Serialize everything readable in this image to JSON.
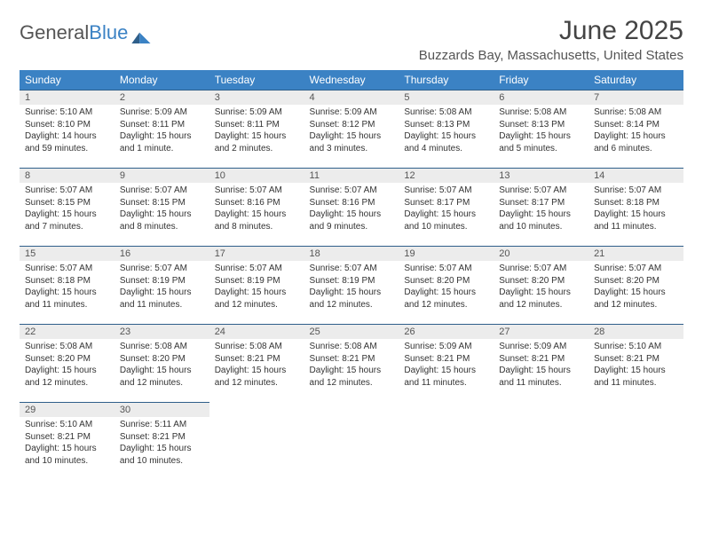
{
  "logo": {
    "text1": "General",
    "text2": "Blue"
  },
  "title": "June 2025",
  "location": "Buzzards Bay, Massachusetts, United States",
  "colors": {
    "header_bg": "#3b82c4",
    "header_text": "#ffffff",
    "daynum_bg": "#ececec",
    "daynum_border": "#2f5f8a",
    "body_bg": "#ffffff",
    "text": "#333333"
  },
  "weekdays": [
    "Sunday",
    "Monday",
    "Tuesday",
    "Wednesday",
    "Thursday",
    "Friday",
    "Saturday"
  ],
  "weeks": [
    [
      {
        "n": "1",
        "sr": "Sunrise: 5:10 AM",
        "ss": "Sunset: 8:10 PM",
        "dl": "Daylight: 14 hours and 59 minutes."
      },
      {
        "n": "2",
        "sr": "Sunrise: 5:09 AM",
        "ss": "Sunset: 8:11 PM",
        "dl": "Daylight: 15 hours and 1 minute."
      },
      {
        "n": "3",
        "sr": "Sunrise: 5:09 AM",
        "ss": "Sunset: 8:11 PM",
        "dl": "Daylight: 15 hours and 2 minutes."
      },
      {
        "n": "4",
        "sr": "Sunrise: 5:09 AM",
        "ss": "Sunset: 8:12 PM",
        "dl": "Daylight: 15 hours and 3 minutes."
      },
      {
        "n": "5",
        "sr": "Sunrise: 5:08 AM",
        "ss": "Sunset: 8:13 PM",
        "dl": "Daylight: 15 hours and 4 minutes."
      },
      {
        "n": "6",
        "sr": "Sunrise: 5:08 AM",
        "ss": "Sunset: 8:13 PM",
        "dl": "Daylight: 15 hours and 5 minutes."
      },
      {
        "n": "7",
        "sr": "Sunrise: 5:08 AM",
        "ss": "Sunset: 8:14 PM",
        "dl": "Daylight: 15 hours and 6 minutes."
      }
    ],
    [
      {
        "n": "8",
        "sr": "Sunrise: 5:07 AM",
        "ss": "Sunset: 8:15 PM",
        "dl": "Daylight: 15 hours and 7 minutes."
      },
      {
        "n": "9",
        "sr": "Sunrise: 5:07 AM",
        "ss": "Sunset: 8:15 PM",
        "dl": "Daylight: 15 hours and 8 minutes."
      },
      {
        "n": "10",
        "sr": "Sunrise: 5:07 AM",
        "ss": "Sunset: 8:16 PM",
        "dl": "Daylight: 15 hours and 8 minutes."
      },
      {
        "n": "11",
        "sr": "Sunrise: 5:07 AM",
        "ss": "Sunset: 8:16 PM",
        "dl": "Daylight: 15 hours and 9 minutes."
      },
      {
        "n": "12",
        "sr": "Sunrise: 5:07 AM",
        "ss": "Sunset: 8:17 PM",
        "dl": "Daylight: 15 hours and 10 minutes."
      },
      {
        "n": "13",
        "sr": "Sunrise: 5:07 AM",
        "ss": "Sunset: 8:17 PM",
        "dl": "Daylight: 15 hours and 10 minutes."
      },
      {
        "n": "14",
        "sr": "Sunrise: 5:07 AM",
        "ss": "Sunset: 8:18 PM",
        "dl": "Daylight: 15 hours and 11 minutes."
      }
    ],
    [
      {
        "n": "15",
        "sr": "Sunrise: 5:07 AM",
        "ss": "Sunset: 8:18 PM",
        "dl": "Daylight: 15 hours and 11 minutes."
      },
      {
        "n": "16",
        "sr": "Sunrise: 5:07 AM",
        "ss": "Sunset: 8:19 PM",
        "dl": "Daylight: 15 hours and 11 minutes."
      },
      {
        "n": "17",
        "sr": "Sunrise: 5:07 AM",
        "ss": "Sunset: 8:19 PM",
        "dl": "Daylight: 15 hours and 12 minutes."
      },
      {
        "n": "18",
        "sr": "Sunrise: 5:07 AM",
        "ss": "Sunset: 8:19 PM",
        "dl": "Daylight: 15 hours and 12 minutes."
      },
      {
        "n": "19",
        "sr": "Sunrise: 5:07 AM",
        "ss": "Sunset: 8:20 PM",
        "dl": "Daylight: 15 hours and 12 minutes."
      },
      {
        "n": "20",
        "sr": "Sunrise: 5:07 AM",
        "ss": "Sunset: 8:20 PM",
        "dl": "Daylight: 15 hours and 12 minutes."
      },
      {
        "n": "21",
        "sr": "Sunrise: 5:07 AM",
        "ss": "Sunset: 8:20 PM",
        "dl": "Daylight: 15 hours and 12 minutes."
      }
    ],
    [
      {
        "n": "22",
        "sr": "Sunrise: 5:08 AM",
        "ss": "Sunset: 8:20 PM",
        "dl": "Daylight: 15 hours and 12 minutes."
      },
      {
        "n": "23",
        "sr": "Sunrise: 5:08 AM",
        "ss": "Sunset: 8:20 PM",
        "dl": "Daylight: 15 hours and 12 minutes."
      },
      {
        "n": "24",
        "sr": "Sunrise: 5:08 AM",
        "ss": "Sunset: 8:21 PM",
        "dl": "Daylight: 15 hours and 12 minutes."
      },
      {
        "n": "25",
        "sr": "Sunrise: 5:08 AM",
        "ss": "Sunset: 8:21 PM",
        "dl": "Daylight: 15 hours and 12 minutes."
      },
      {
        "n": "26",
        "sr": "Sunrise: 5:09 AM",
        "ss": "Sunset: 8:21 PM",
        "dl": "Daylight: 15 hours and 11 minutes."
      },
      {
        "n": "27",
        "sr": "Sunrise: 5:09 AM",
        "ss": "Sunset: 8:21 PM",
        "dl": "Daylight: 15 hours and 11 minutes."
      },
      {
        "n": "28",
        "sr": "Sunrise: 5:10 AM",
        "ss": "Sunset: 8:21 PM",
        "dl": "Daylight: 15 hours and 11 minutes."
      }
    ],
    [
      {
        "n": "29",
        "sr": "Sunrise: 5:10 AM",
        "ss": "Sunset: 8:21 PM",
        "dl": "Daylight: 15 hours and 10 minutes."
      },
      {
        "n": "30",
        "sr": "Sunrise: 5:11 AM",
        "ss": "Sunset: 8:21 PM",
        "dl": "Daylight: 15 hours and 10 minutes."
      },
      null,
      null,
      null,
      null,
      null
    ]
  ]
}
